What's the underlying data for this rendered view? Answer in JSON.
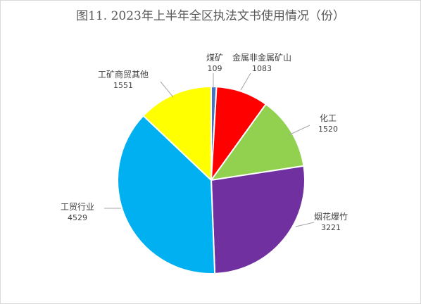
{
  "chart_data": {
    "type": "pie",
    "title": "图11. 2023年上半年全区执法文书使用情况（份）",
    "slices": [
      {
        "label": "煤矿",
        "value": 109,
        "color": "#4472c4"
      },
      {
        "label": "金属非金属矿山",
        "value": 1083,
        "color": "#ff0000"
      },
      {
        "label": "化工",
        "value": 1520,
        "color": "#92d050"
      },
      {
        "label": "烟花爆竹",
        "value": 3221,
        "color": "#7030a0"
      },
      {
        "label": "工贸行业",
        "value": 4529,
        "color": "#00b0f0"
      },
      {
        "label": "工矿商贸其他",
        "value": 1551,
        "color": "#ffff00"
      }
    ],
    "legend": "none",
    "data_labels": "label-and-value-outside-with-leader-lines"
  }
}
